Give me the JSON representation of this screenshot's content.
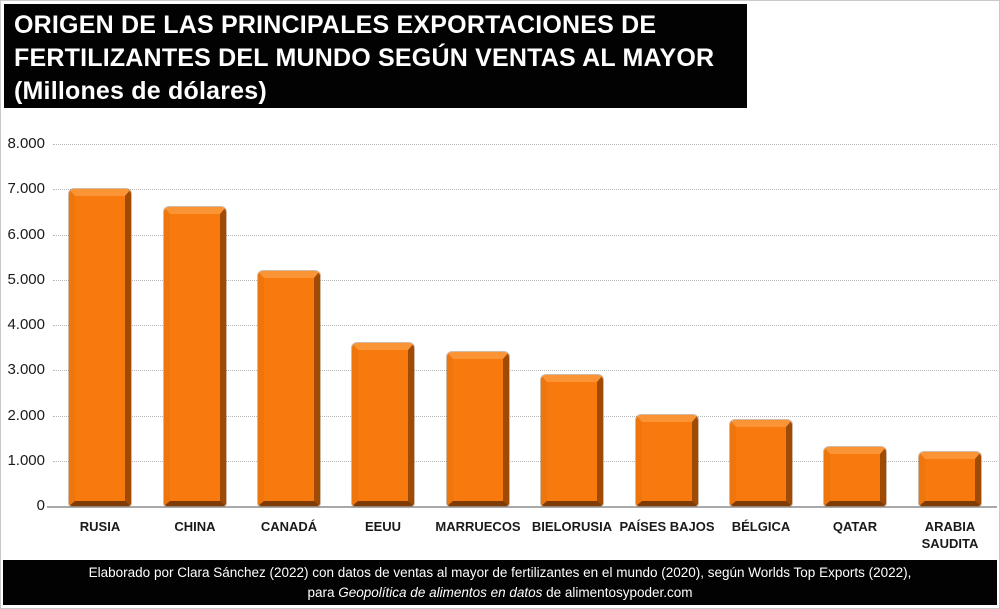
{
  "title": {
    "line1": "ORIGEN DE LAS PRINCIPALES EXPORTACIONES DE",
    "line2": "FERTILIZANTES DEL MUNDO SEGÚN VENTAS AL MAYOR",
    "line3": "(Millones de dólares)"
  },
  "chart_data": {
    "type": "bar",
    "title": "ORIGEN DE LAS PRINCIPALES EXPORTACIONES DE FERTILIZANTES DEL MUNDO SEGÚN VENTAS AL MAYOR",
    "subtitle": "(Millones de dólares)",
    "unit": "Millones de dólares",
    "categories": [
      "RUSIA",
      "CHINA",
      "CANADÁ",
      "EEUU",
      "MARRUECOS",
      "BIELORUSIA",
      "PAÍSES BAJOS",
      "BÉLGICA",
      "QATAR",
      "ARABIA\nSAUDITA"
    ],
    "values": [
      7000,
      6600,
      5200,
      3600,
      3400,
      2900,
      2000,
      1900,
      1300,
      1200
    ],
    "xlabel": "",
    "ylabel": "Millones de dólares",
    "ylim": [
      0,
      8000
    ],
    "ytick_step": 1000,
    "ytick_labels": [
      "8.000",
      "7.000",
      "6.000",
      "5.000",
      "4.000",
      "3.000",
      "2.000",
      "1.000",
      "0"
    ],
    "grid": "horizontal-dotted",
    "legend": "none",
    "bar_color": "#F8790D"
  },
  "footer": {
    "line1": "Elaborado por Clara Sánchez (2022) con datos de ventas al mayor de fertilizantes en el mundo (2020), según Worlds Top Exports (2022),",
    "line2_prefix": "para ",
    "line2_italic": "Geopolítica de alimentos en datos",
    "line2_suffix": " de alimentosypoder.com"
  },
  "colors": {
    "bar_fill": "#F8790D",
    "bar_highlight": "#FB9434",
    "bar_edge_left": "#EE760D",
    "bar_shadow_right": "#A04B05",
    "bar_shadow_bottom": "#7E3B04",
    "grid_line": "#B8B8B8",
    "axis_line": "#A9A9A9",
    "title_bg": "#020202",
    "title_text": "#FFFFFF",
    "footer_bg": "#020202",
    "footer_text": "#FFFFFF",
    "label_text": "#1A1A1A"
  }
}
